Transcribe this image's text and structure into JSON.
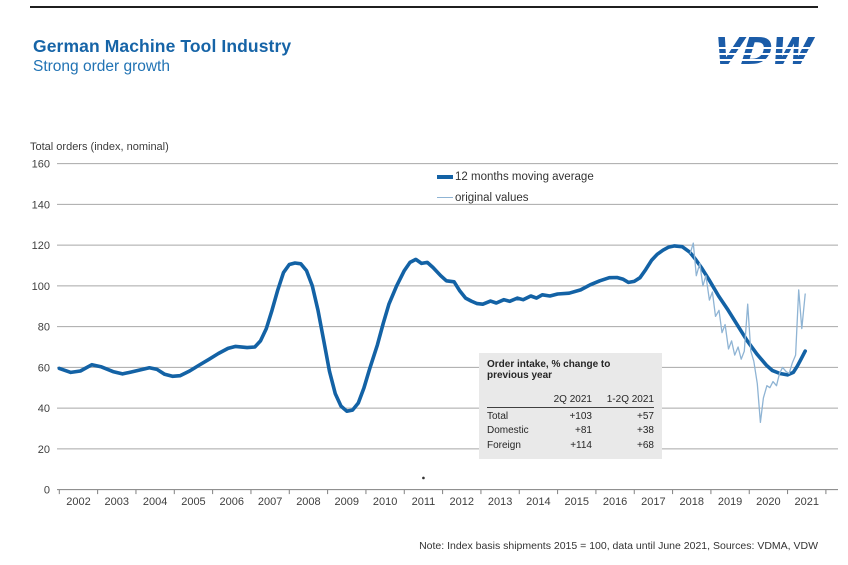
{
  "page": {
    "title": "German Machine Tool Industry",
    "subtitle": "Strong order growth",
    "logo": "VDW",
    "note": "Note: Index basis shipments 2015 = 100, data until June 2021, Sources: VDMA, VDW"
  },
  "chart_data": {
    "type": "line",
    "title": "Total orders (index, nominal)",
    "ylabel": "Total orders (index, nominal)",
    "ylim": [
      0,
      160
    ],
    "ytick_step": 20,
    "yticks": [
      160,
      140,
      120,
      100,
      80,
      60,
      40,
      20,
      0
    ],
    "xticks": [
      "2002",
      "2003",
      "2004",
      "2005",
      "2006",
      "2007",
      "2008",
      "2009",
      "2010",
      "2011",
      "2012",
      "2013",
      "2014",
      "2015",
      "2016",
      "2017",
      "2018",
      "2019",
      "2020",
      "2021"
    ],
    "grid": true,
    "legend_position": "top-center",
    "colors": {
      "grid": "#a8a8a8",
      "axis": "#808080",
      "tick_text": "#404040"
    },
    "series": [
      {
        "name": "12 months moving average",
        "color": "#1362a5",
        "width": 3.6,
        "points": [
          [
            2002.0,
            59.5
          ],
          [
            2002.3,
            57.5
          ],
          [
            2002.55,
            58.2
          ],
          [
            2002.85,
            61.3
          ],
          [
            2003.1,
            60.2
          ],
          [
            2003.4,
            57.9
          ],
          [
            2003.65,
            56.8
          ],
          [
            2003.85,
            57.6
          ],
          [
            2004.1,
            58.7
          ],
          [
            2004.35,
            59.8
          ],
          [
            2004.55,
            59.0
          ],
          [
            2004.75,
            56.6
          ],
          [
            2004.95,
            55.6
          ],
          [
            2005.15,
            55.9
          ],
          [
            2005.4,
            58.2
          ],
          [
            2005.65,
            61.1
          ],
          [
            2005.9,
            63.9
          ],
          [
            2006.15,
            66.8
          ],
          [
            2006.4,
            69.3
          ],
          [
            2006.6,
            70.3
          ],
          [
            2006.9,
            69.7
          ],
          [
            2007.1,
            70.0
          ],
          [
            2007.25,
            73.0
          ],
          [
            2007.4,
            79.0
          ],
          [
            2007.55,
            88.0
          ],
          [
            2007.7,
            98.0
          ],
          [
            2007.85,
            106.5
          ],
          [
            2008.0,
            110.5
          ],
          [
            2008.15,
            111.2
          ],
          [
            2008.3,
            110.8
          ],
          [
            2008.45,
            107.5
          ],
          [
            2008.6,
            100.0
          ],
          [
            2008.75,
            88.0
          ],
          [
            2008.9,
            73.0
          ],
          [
            2009.05,
            58.0
          ],
          [
            2009.2,
            47.0
          ],
          [
            2009.35,
            41.0
          ],
          [
            2009.5,
            38.5
          ],
          [
            2009.65,
            39.0
          ],
          [
            2009.8,
            42.5
          ],
          [
            2009.95,
            50.0
          ],
          [
            2010.1,
            59.5
          ],
          [
            2010.3,
            71.0
          ],
          [
            2010.45,
            81.5
          ],
          [
            2010.6,
            91.0
          ],
          [
            2010.8,
            100.0
          ],
          [
            2011.0,
            107.5
          ],
          [
            2011.15,
            111.5
          ],
          [
            2011.3,
            113.0
          ],
          [
            2011.45,
            111.0
          ],
          [
            2011.6,
            111.5
          ],
          [
            2011.75,
            109.0
          ],
          [
            2011.95,
            105.0
          ],
          [
            2012.1,
            102.5
          ],
          [
            2012.3,
            102.0
          ],
          [
            2012.45,
            97.5
          ],
          [
            2012.6,
            94.0
          ],
          [
            2012.75,
            92.5
          ],
          [
            2012.9,
            91.3
          ],
          [
            2013.05,
            91.0
          ],
          [
            2013.25,
            92.5
          ],
          [
            2013.4,
            91.6
          ],
          [
            2013.6,
            93.2
          ],
          [
            2013.75,
            92.4
          ],
          [
            2013.95,
            94.0
          ],
          [
            2014.1,
            93.2
          ],
          [
            2014.3,
            95.0
          ],
          [
            2014.45,
            94.0
          ],
          [
            2014.6,
            95.6
          ],
          [
            2014.8,
            95.0
          ],
          [
            2015.0,
            96.0
          ],
          [
            2015.3,
            96.4
          ],
          [
            2015.6,
            98.0
          ],
          [
            2015.85,
            100.5
          ],
          [
            2016.1,
            102.5
          ],
          [
            2016.35,
            104.0
          ],
          [
            2016.55,
            104.1
          ],
          [
            2016.7,
            103.3
          ],
          [
            2016.85,
            101.7
          ],
          [
            2017.0,
            102.2
          ],
          [
            2017.15,
            104.0
          ],
          [
            2017.3,
            108.0
          ],
          [
            2017.45,
            112.5
          ],
          [
            2017.6,
            115.5
          ],
          [
            2017.75,
            117.5
          ],
          [
            2017.9,
            119.0
          ],
          [
            2018.05,
            119.6
          ],
          [
            2018.25,
            119.2
          ],
          [
            2018.45,
            116.5
          ],
          [
            2018.6,
            113.0
          ],
          [
            2018.75,
            109.0
          ],
          [
            2018.95,
            103.0
          ],
          [
            2019.2,
            95.0
          ],
          [
            2019.45,
            88.0
          ],
          [
            2019.7,
            80.5
          ],
          [
            2019.95,
            73.0
          ],
          [
            2020.2,
            66.5
          ],
          [
            2020.45,
            61.0
          ],
          [
            2020.6,
            58.5
          ],
          [
            2020.8,
            57.0
          ],
          [
            2021.0,
            56.3
          ],
          [
            2021.15,
            57.5
          ],
          [
            2021.25,
            60.5
          ],
          [
            2021.35,
            64.0
          ],
          [
            2021.46,
            68.0
          ]
        ]
      },
      {
        "name": "original values",
        "color": "#8fb4d4",
        "width": 1.3,
        "points": [
          [
            2018.46,
            116
          ],
          [
            2018.54,
            121
          ],
          [
            2018.62,
            105
          ],
          [
            2018.71,
            111
          ],
          [
            2018.79,
            100
          ],
          [
            2018.87,
            105
          ],
          [
            2018.96,
            93
          ],
          [
            2019.04,
            97
          ],
          [
            2019.12,
            85
          ],
          [
            2019.21,
            88
          ],
          [
            2019.29,
            77
          ],
          [
            2019.37,
            81
          ],
          [
            2019.46,
            69
          ],
          [
            2019.54,
            73
          ],
          [
            2019.62,
            66
          ],
          [
            2019.71,
            70
          ],
          [
            2019.79,
            64
          ],
          [
            2019.87,
            68
          ],
          [
            2019.96,
            91
          ],
          [
            2020.04,
            68
          ],
          [
            2020.12,
            63
          ],
          [
            2020.21,
            52
          ],
          [
            2020.29,
            33
          ],
          [
            2020.37,
            45
          ],
          [
            2020.46,
            51
          ],
          [
            2020.54,
            50
          ],
          [
            2020.62,
            53
          ],
          [
            2020.71,
            51
          ],
          [
            2020.79,
            57
          ],
          [
            2020.87,
            60
          ],
          [
            2020.96,
            58
          ],
          [
            2021.04,
            57
          ],
          [
            2021.12,
            62
          ],
          [
            2021.21,
            66
          ],
          [
            2021.29,
            98
          ],
          [
            2021.37,
            79
          ],
          [
            2021.46,
            96
          ]
        ]
      }
    ],
    "annotations": [
      {
        "type": "dot",
        "x_year": 2011.5,
        "y_value": 5.7
      }
    ]
  },
  "table": {
    "title": "Order intake, % change to previous year",
    "columns": [
      "",
      "2Q 2021",
      "1-2Q 2021"
    ],
    "rows": [
      [
        "Total",
        "+103",
        "+57"
      ],
      [
        "Domestic",
        "+81",
        "+38"
      ],
      [
        "Foreign",
        "+114",
        "+68"
      ]
    ]
  }
}
